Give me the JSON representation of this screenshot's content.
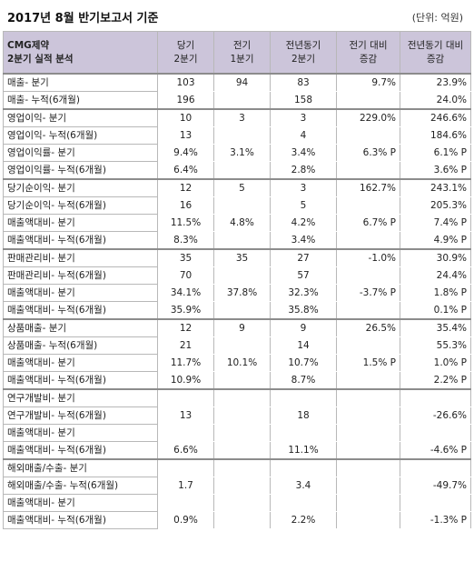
{
  "title": "2017년 8월 반기보고서 기준",
  "unit": "(단위: 억원)",
  "header": {
    "label_line1": "CMG제약",
    "label_line2": "2분기 실적 분석",
    "columns": [
      {
        "line1": "당기",
        "line2": "2분기"
      },
      {
        "line1": "전기",
        "line2": "1분기"
      },
      {
        "line1": "전년동기",
        "line2": "2분기"
      },
      {
        "line1": "전기 대비",
        "line2": "증감"
      },
      {
        "line1": "전년동기 대비",
        "line2": "증감"
      }
    ]
  },
  "groups": [
    {
      "rows": [
        {
          "label": "매출- 분기",
          "v": [
            "103",
            "94",
            "83",
            "9.7%",
            "23.9%"
          ]
        },
        {
          "label": "매출- 누적(6개월)",
          "v": [
            "196",
            "",
            "158",
            "",
            "24.0%"
          ]
        }
      ]
    },
    {
      "rows": [
        {
          "label": "영업이익- 분기",
          "v": [
            "10",
            "3",
            "3",
            "229.0%",
            "246.6%"
          ]
        },
        {
          "label": "영업이익- 누적(6개월)",
          "v": [
            "13",
            "",
            "4",
            "",
            "184.6%"
          ]
        },
        {
          "label": "영업이익률- 분기",
          "v": [
            "9.4%",
            "3.1%",
            "3.4%",
            "6.3% P",
            "6.1% P"
          ]
        },
        {
          "label": "영업이익률- 누적(6개월)",
          "v": [
            "6.4%",
            "",
            "2.8%",
            "",
            "3.6% P"
          ]
        }
      ]
    },
    {
      "rows": [
        {
          "label": "당기순이익- 분기",
          "v": [
            "12",
            "5",
            "3",
            "162.7%",
            "243.1%"
          ]
        },
        {
          "label": "당기순이익- 누적(6개월)",
          "v": [
            "16",
            "",
            "5",
            "",
            "205.3%"
          ]
        },
        {
          "label": "매출액대비- 분기",
          "v": [
            "11.5%",
            "4.8%",
            "4.2%",
            "6.7% P",
            "7.4% P"
          ]
        },
        {
          "label": "매출액대비- 누적(6개월)",
          "v": [
            "8.3%",
            "",
            "3.4%",
            "",
            "4.9% P"
          ]
        }
      ]
    },
    {
      "rows": [
        {
          "label": "판매관리비- 분기",
          "v": [
            "35",
            "35",
            "27",
            "-1.0%",
            "30.9%"
          ]
        },
        {
          "label": "판매관리비- 누적(6개월)",
          "v": [
            "70",
            "",
            "57",
            "",
            "24.4%"
          ]
        },
        {
          "label": "매출액대비- 분기",
          "v": [
            "34.1%",
            "37.8%",
            "32.3%",
            "-3.7% P",
            "1.8% P"
          ]
        },
        {
          "label": "매출액대비- 누적(6개월)",
          "v": [
            "35.9%",
            "",
            "35.8%",
            "",
            "0.1% P"
          ]
        }
      ]
    },
    {
      "rows": [
        {
          "label": "상품매출- 분기",
          "v": [
            "12",
            "9",
            "9",
            "26.5%",
            "35.4%"
          ]
        },
        {
          "label": "상품매출- 누적(6개월)",
          "v": [
            "21",
            "",
            "14",
            "",
            "55.3%"
          ]
        },
        {
          "label": "매출액대비- 분기",
          "v": [
            "11.7%",
            "10.1%",
            "10.7%",
            "1.5% P",
            "1.0% P"
          ]
        },
        {
          "label": "매출액대비- 누적(6개월)",
          "v": [
            "10.9%",
            "",
            "8.7%",
            "",
            "2.2% P"
          ]
        }
      ]
    },
    {
      "rows": [
        {
          "label": "연구개발비- 분기",
          "v": [
            "",
            "",
            "",
            "",
            ""
          ]
        },
        {
          "label": "연구개발비- 누적(6개월)",
          "v": [
            "13",
            "",
            "18",
            "",
            "-26.6%"
          ]
        },
        {
          "label": "매출액대비- 분기",
          "v": [
            "",
            "",
            "",
            "",
            ""
          ]
        },
        {
          "label": "매출액대비- 누적(6개월)",
          "v": [
            "6.6%",
            "",
            "11.1%",
            "",
            "-4.6% P"
          ]
        }
      ]
    },
    {
      "rows": [
        {
          "label": "해외매출/수출- 분기",
          "v": [
            "",
            "",
            "",
            "",
            ""
          ]
        },
        {
          "label": "해외매출/수출- 누적(6개월)",
          "v": [
            "1.7",
            "",
            "3.4",
            "",
            "-49.7%"
          ]
        },
        {
          "label": "매출액대비- 분기",
          "v": [
            "",
            "",
            "",
            "",
            ""
          ]
        },
        {
          "label": "매출액대비- 누적(6개월)",
          "v": [
            "0.9%",
            "",
            "2.2%",
            "",
            "-1.3% P"
          ]
        }
      ]
    }
  ]
}
